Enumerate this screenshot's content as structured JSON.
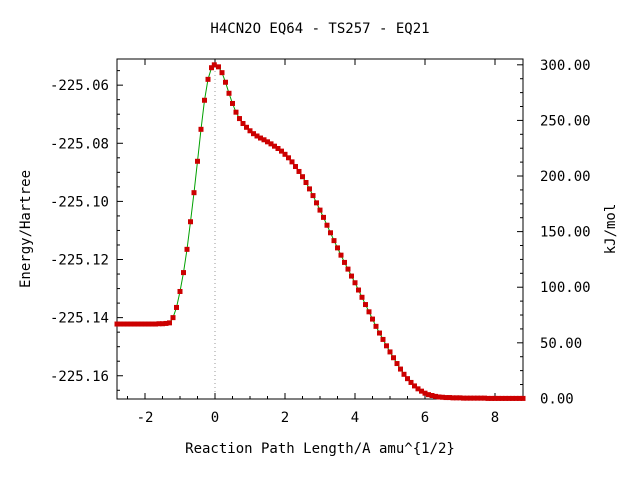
{
  "chart_data": {
    "type": "line",
    "title": "H4CN2O   EQ64 - TS257 - EQ21",
    "xlabel": "Reaction Path Length/A amu^{1/2}",
    "ylabel": "Energy/Hartree",
    "y2label": "kJ/mol",
    "xlim": [
      -2.8,
      8.8
    ],
    "ylim": [
      -225.168,
      -225.051
    ],
    "y2lim": [
      0.0,
      300.0
    ],
    "x_ticks": [
      -2,
      0,
      2,
      4,
      6,
      8
    ],
    "x_tick_labels": [
      "-2",
      "0",
      "2",
      "4",
      "6",
      "8"
    ],
    "y_ticks": [
      -225.06,
      -225.08,
      -225.1,
      -225.12,
      -225.14,
      -225.16
    ],
    "y_tick_labels": [
      "-225.06",
      "-225.08",
      "-225.10",
      "-225.12",
      "-225.14",
      "-225.16"
    ],
    "y2_ticks": [
      300,
      250,
      200,
      150,
      100,
      50,
      0
    ],
    "y2_tick_labels": [
      "300.00",
      "250.00",
      "200.00",
      "150.00",
      "100.00",
      "50.00",
      "0.00"
    ],
    "ts_marker_x": 0,
    "line_color": "#00a000",
    "marker_color": "#cc0000",
    "ts_line_color": "#999999",
    "series": [
      {
        "name": "",
        "points": [
          [
            -2.8,
            -225.1422
          ],
          [
            -2.7,
            -225.1422
          ],
          [
            -2.6,
            -225.1422
          ],
          [
            -2.5,
            -225.1422
          ],
          [
            -2.4,
            -225.1422
          ],
          [
            -2.3,
            -225.1422
          ],
          [
            -2.2,
            -225.1422
          ],
          [
            -2.1,
            -225.1422
          ],
          [
            -2.0,
            -225.1422
          ],
          [
            -1.9,
            -225.1422
          ],
          [
            -1.8,
            -225.1422
          ],
          [
            -1.7,
            -225.1422
          ],
          [
            -1.6,
            -225.1421
          ],
          [
            -1.5,
            -225.1421
          ],
          [
            -1.4,
            -225.142
          ],
          [
            -1.3,
            -225.1418
          ],
          [
            -1.2,
            -225.14
          ],
          [
            -1.1,
            -225.1365
          ],
          [
            -1.0,
            -225.131
          ],
          [
            -0.9,
            -225.1245
          ],
          [
            -0.8,
            -225.1165
          ],
          [
            -0.7,
            -225.107
          ],
          [
            -0.6,
            -225.097
          ],
          [
            -0.5,
            -225.0862
          ],
          [
            -0.4,
            -225.0752
          ],
          [
            -0.3,
            -225.0652
          ],
          [
            -0.2,
            -225.058
          ],
          [
            -0.1,
            -225.054
          ],
          [
            -0.02,
            -225.053
          ],
          [
            0.1,
            -225.0537
          ],
          [
            0.2,
            -225.0557
          ],
          [
            0.3,
            -225.059
          ],
          [
            0.4,
            -225.0628
          ],
          [
            0.5,
            -225.0663
          ],
          [
            0.6,
            -225.0693
          ],
          [
            0.7,
            -225.0715
          ],
          [
            0.8,
            -225.0732
          ],
          [
            0.9,
            -225.0745
          ],
          [
            1.0,
            -225.0757
          ],
          [
            1.1,
            -225.0767
          ],
          [
            1.2,
            -225.0775
          ],
          [
            1.3,
            -225.0782
          ],
          [
            1.4,
            -225.0788
          ],
          [
            1.5,
            -225.0795
          ],
          [
            1.6,
            -225.0802
          ],
          [
            1.7,
            -225.081
          ],
          [
            1.8,
            -225.0818
          ],
          [
            1.9,
            -225.0827
          ],
          [
            2.0,
            -225.0838
          ],
          [
            2.1,
            -225.085
          ],
          [
            2.2,
            -225.0864
          ],
          [
            2.3,
            -225.088
          ],
          [
            2.4,
            -225.0897
          ],
          [
            2.5,
            -225.0915
          ],
          [
            2.6,
            -225.0935
          ],
          [
            2.7,
            -225.0957
          ],
          [
            2.8,
            -225.098
          ],
          [
            2.9,
            -225.1005
          ],
          [
            3.0,
            -225.103
          ],
          [
            3.1,
            -225.1055
          ],
          [
            3.2,
            -225.1082
          ],
          [
            3.3,
            -225.1108
          ],
          [
            3.4,
            -225.1135
          ],
          [
            3.5,
            -225.116
          ],
          [
            3.6,
            -225.1185
          ],
          [
            3.7,
            -225.121
          ],
          [
            3.8,
            -225.1233
          ],
          [
            3.9,
            -225.1257
          ],
          [
            4.0,
            -225.128
          ],
          [
            4.1,
            -225.1305
          ],
          [
            4.2,
            -225.133
          ],
          [
            4.3,
            -225.1355
          ],
          [
            4.4,
            -225.138
          ],
          [
            4.5,
            -225.1405
          ],
          [
            4.6,
            -225.143
          ],
          [
            4.7,
            -225.1453
          ],
          [
            4.8,
            -225.1475
          ],
          [
            4.9,
            -225.1497
          ],
          [
            5.0,
            -225.1518
          ],
          [
            5.1,
            -225.1538
          ],
          [
            5.2,
            -225.1558
          ],
          [
            5.3,
            -225.1577
          ],
          [
            5.4,
            -225.1595
          ],
          [
            5.5,
            -225.161
          ],
          [
            5.6,
            -225.1623
          ],
          [
            5.7,
            -225.1635
          ],
          [
            5.8,
            -225.1645
          ],
          [
            5.9,
            -225.1653
          ],
          [
            6.0,
            -225.166
          ],
          [
            6.1,
            -225.1665
          ],
          [
            6.2,
            -225.1668
          ],
          [
            6.3,
            -225.1671
          ],
          [
            6.4,
            -225.1673
          ],
          [
            6.5,
            -225.1674
          ],
          [
            6.6,
            -225.1675
          ],
          [
            6.7,
            -225.1675
          ],
          [
            6.8,
            -225.1676
          ],
          [
            6.9,
            -225.1676
          ],
          [
            7.0,
            -225.1676
          ],
          [
            7.1,
            -225.1677
          ],
          [
            7.2,
            -225.1677
          ],
          [
            7.3,
            -225.1677
          ],
          [
            7.4,
            -225.1677
          ],
          [
            7.5,
            -225.1677
          ],
          [
            7.6,
            -225.1677
          ],
          [
            7.7,
            -225.1677
          ],
          [
            7.8,
            -225.1678
          ],
          [
            7.9,
            -225.1678
          ],
          [
            8.0,
            -225.1678
          ],
          [
            8.1,
            -225.1678
          ],
          [
            8.2,
            -225.1678
          ],
          [
            8.3,
            -225.1678
          ],
          [
            8.4,
            -225.1678
          ],
          [
            8.5,
            -225.1678
          ],
          [
            8.6,
            -225.1678
          ],
          [
            8.7,
            -225.1678
          ],
          [
            8.8,
            -225.1678
          ]
        ]
      }
    ]
  }
}
